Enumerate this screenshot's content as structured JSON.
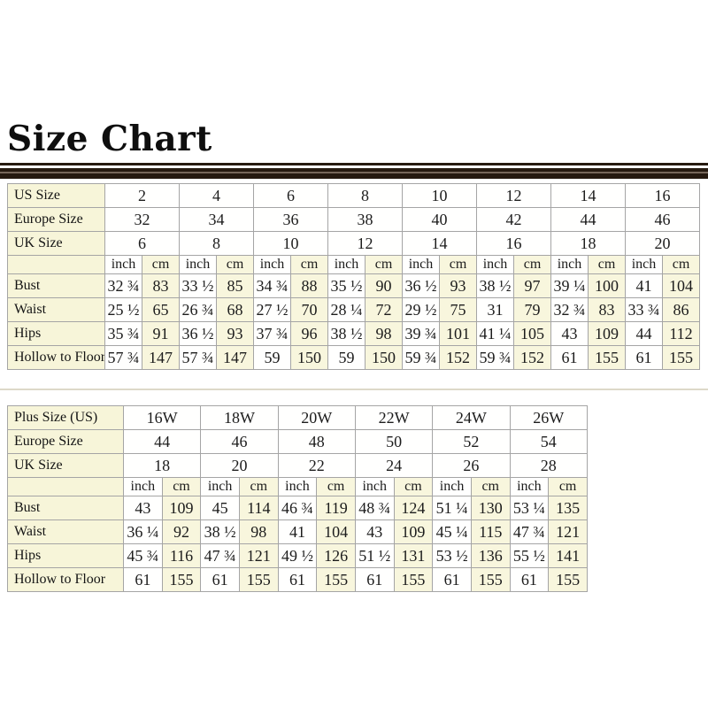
{
  "title": "Size Chart",
  "colors": {
    "cell_cream": "#f7f5d9",
    "table_border": "#a5a5a5",
    "title_bar_dark": "#261a10",
    "title_bar_light": "#77675b",
    "background": "#ffffff"
  },
  "tables": [
    {
      "name": "standard-sizes",
      "size_rows": [
        {
          "label": "US Size",
          "values": [
            "2",
            "4",
            "6",
            "8",
            "10",
            "12",
            "14",
            "16"
          ]
        },
        {
          "label": "Europe Size",
          "values": [
            "32",
            "34",
            "36",
            "38",
            "40",
            "42",
            "44",
            "46"
          ]
        },
        {
          "label": "UK Size",
          "values": [
            "6",
            "8",
            "10",
            "12",
            "14",
            "16",
            "18",
            "20"
          ]
        }
      ],
      "unit_headers": [
        "inch",
        "cm"
      ],
      "measure_rows": [
        {
          "label": "Bust",
          "pairs": [
            [
              "32 ¾",
              "83"
            ],
            [
              "33 ½",
              "85"
            ],
            [
              "34 ¾",
              "88"
            ],
            [
              "35 ½",
              "90"
            ],
            [
              "36 ½",
              "93"
            ],
            [
              "38 ½",
              "97"
            ],
            [
              "39 ¼",
              "100"
            ],
            [
              "41",
              "104"
            ]
          ]
        },
        {
          "label": "Waist",
          "pairs": [
            [
              "25 ½",
              "65"
            ],
            [
              "26 ¾",
              "68"
            ],
            [
              "27 ½",
              "70"
            ],
            [
              "28 ¼",
              "72"
            ],
            [
              "29 ½",
              "75"
            ],
            [
              "31",
              "79"
            ],
            [
              "32 ¾",
              "83"
            ],
            [
              "33 ¾",
              "86"
            ]
          ]
        },
        {
          "label": "Hips",
          "pairs": [
            [
              "35 ¾",
              "91"
            ],
            [
              "36 ½",
              "93"
            ],
            [
              "37 ¾",
              "96"
            ],
            [
              "38 ½",
              "98"
            ],
            [
              "39 ¾",
              "101"
            ],
            [
              "41 ¼",
              "105"
            ],
            [
              "43",
              "109"
            ],
            [
              "44",
              "112"
            ]
          ]
        },
        {
          "label": "Hollow to Floor",
          "pairs": [
            [
              "57 ¾",
              "147"
            ],
            [
              "57 ¾",
              "147"
            ],
            [
              "59",
              "150"
            ],
            [
              "59",
              "150"
            ],
            [
              "59 ¾",
              "152"
            ],
            [
              "59 ¾",
              "152"
            ],
            [
              "61",
              "155"
            ],
            [
              "61",
              "155"
            ]
          ]
        }
      ]
    },
    {
      "name": "plus-sizes",
      "size_rows": [
        {
          "label": "Plus Size (US)",
          "values": [
            "16W",
            "18W",
            "20W",
            "22W",
            "24W",
            "26W"
          ]
        },
        {
          "label": "Europe Size",
          "values": [
            "44",
            "46",
            "48",
            "50",
            "52",
            "54"
          ]
        },
        {
          "label": "UK Size",
          "values": [
            "18",
            "20",
            "22",
            "24",
            "26",
            "28"
          ]
        }
      ],
      "unit_headers": [
        "inch",
        "cm"
      ],
      "measure_rows": [
        {
          "label": "Bust",
          "pairs": [
            [
              "43",
              "109"
            ],
            [
              "45",
              "114"
            ],
            [
              "46 ¾",
              "119"
            ],
            [
              "48 ¾",
              "124"
            ],
            [
              "51 ¼",
              "130"
            ],
            [
              "53 ¼",
              "135"
            ]
          ]
        },
        {
          "label": "Waist",
          "pairs": [
            [
              "36 ¼",
              "92"
            ],
            [
              "38 ½",
              "98"
            ],
            [
              "41",
              "104"
            ],
            [
              "43",
              "109"
            ],
            [
              "45 ¼",
              "115"
            ],
            [
              "47 ¾",
              "121"
            ]
          ]
        },
        {
          "label": "Hips",
          "pairs": [
            [
              "45 ¾",
              "116"
            ],
            [
              "47 ¾",
              "121"
            ],
            [
              "49 ½",
              "126"
            ],
            [
              "51 ½",
              "131"
            ],
            [
              "53 ½",
              "136"
            ],
            [
              "55 ½",
              "141"
            ]
          ]
        },
        {
          "label": "Hollow to Floor",
          "pairs": [
            [
              "61",
              "155"
            ],
            [
              "61",
              "155"
            ],
            [
              "61",
              "155"
            ],
            [
              "61",
              "155"
            ],
            [
              "61",
              "155"
            ],
            [
              "61",
              "155"
            ]
          ]
        }
      ]
    }
  ]
}
